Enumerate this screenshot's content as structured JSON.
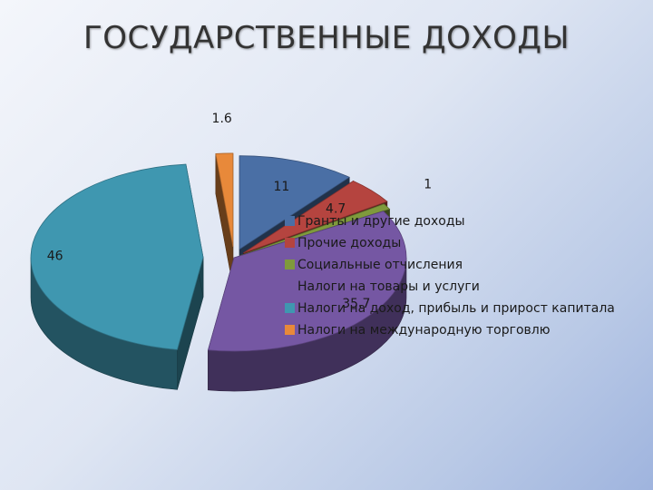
{
  "title": "ГОСУДАРСТВЕННЫЕ ДОХОДЫ",
  "chart_data": {
    "type": "pie",
    "style": "3d-exploded",
    "legend_position": "right",
    "categories": [
      "Гранты и другие доходы",
      "Прочие доходы",
      "Социальные отчисления",
      "Налоги на товары и услуги",
      "Налоги на доход, прибыль и прирост капитала",
      "Налоги на международную торговлю"
    ],
    "values": [
      11,
      4.7,
      1,
      35.7,
      46,
      1.6
    ],
    "value_labels": [
      "11",
      "4.7",
      "1",
      "35.7",
      "46",
      "1.6"
    ],
    "colors": [
      "#4a6fa5",
      "#b5443f",
      "#7f9a3c",
      "#7557a3",
      "#3f97b0",
      "#e8893a"
    ]
  }
}
